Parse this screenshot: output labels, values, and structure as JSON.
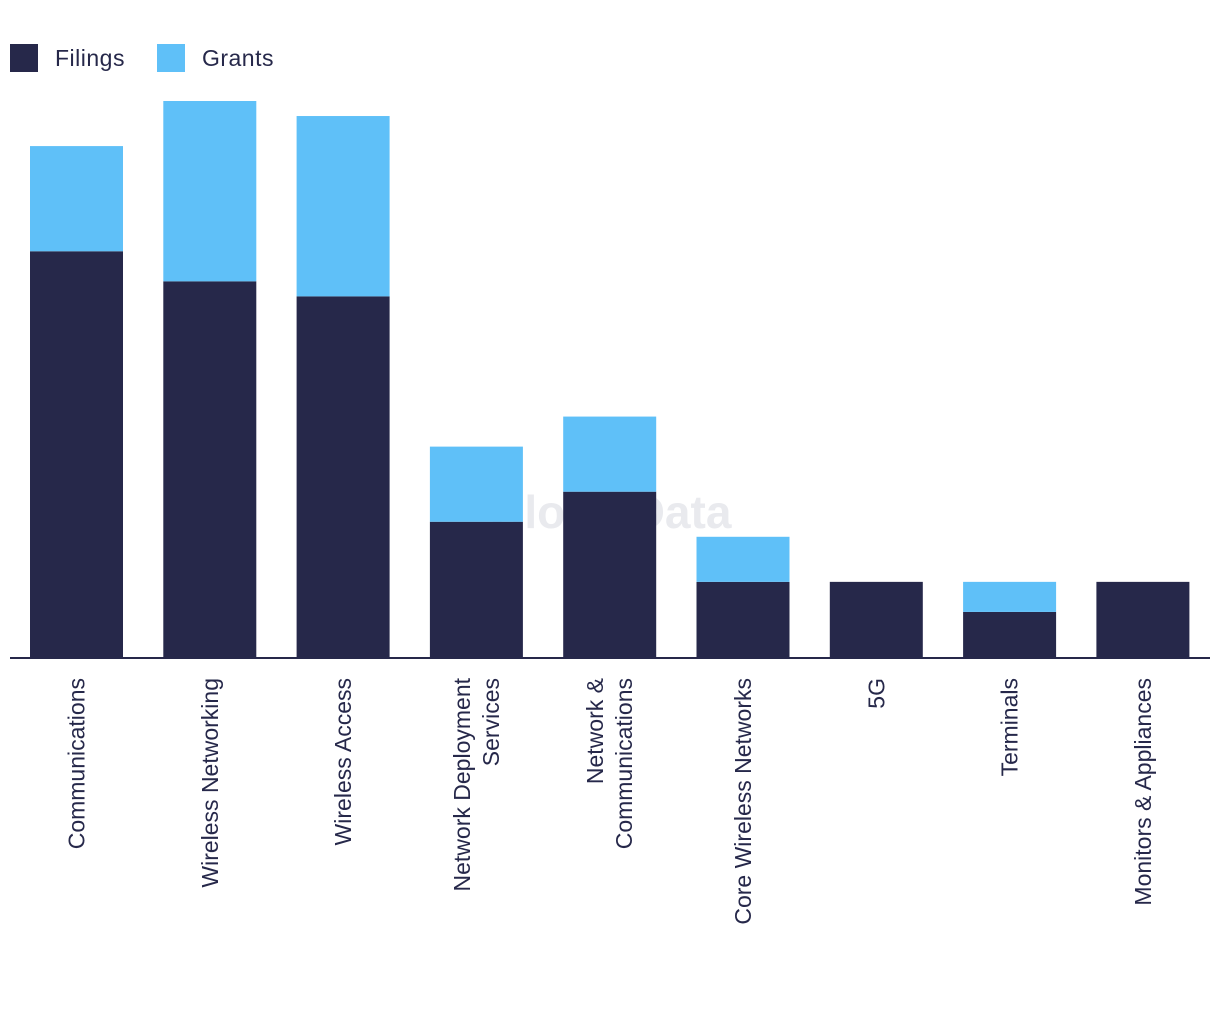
{
  "legend": {
    "filings_label": "Filings",
    "grants_label": "Grants"
  },
  "watermark": "GlobalData",
  "colors": {
    "filings": "#26284a",
    "grants": "#5fc0f8",
    "axis": "#26284a",
    "text": "#26284a"
  },
  "chart_data": {
    "type": "bar",
    "stacked": true,
    "categories": [
      "Communications",
      "Wireless Networking",
      "Wireless Access",
      "Network Deployment\nServices",
      "Network &\nCommunications",
      "Core Wireless Networks",
      "5G",
      "Terminals",
      "Monitors & Appliances"
    ],
    "series": [
      {
        "name": "Filings",
        "values": [
          27,
          25,
          24,
          9,
          11,
          5,
          5,
          3,
          5
        ]
      },
      {
        "name": "Grants",
        "values": [
          7,
          12,
          12,
          5,
          5,
          3,
          0,
          2,
          0
        ]
      }
    ],
    "ylim": [
      0,
      37
    ],
    "legend_position": "top-left",
    "grid": false
  }
}
